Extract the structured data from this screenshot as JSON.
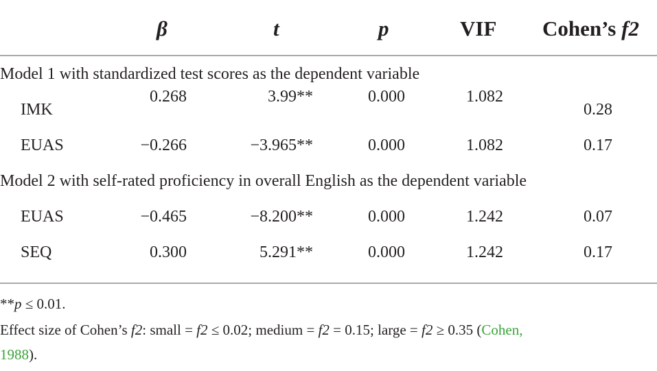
{
  "table": {
    "headers": {
      "beta": "β",
      "t": "t",
      "p": "p",
      "vif": "VIF",
      "cohen_prefix": "Cohen’s ",
      "cohen_f": "f2"
    },
    "model1": {
      "title": "Model 1 with standardized test scores as the dependent variable",
      "rows": [
        {
          "label": "IMK",
          "beta": "0.268",
          "t": "3.99**",
          "p": "0.000",
          "vif": "1.082",
          "f2": "0.28"
        },
        {
          "label": "EUAS",
          "beta": "−0.266",
          "t": "−3.965**",
          "p": "0.000",
          "vif": "1.082",
          "f2": "0.17"
        }
      ]
    },
    "model2": {
      "title": "Model 2 with self-rated proficiency in overall English as the dependent variable",
      "rows": [
        {
          "label": "EUAS",
          "beta": "−0.465",
          "t": "−8.200**",
          "p": "0.000",
          "vif": "1.242",
          "f2": "0.07"
        },
        {
          "label": "SEQ",
          "beta": "0.300",
          "t": "5.291**",
          "p": "0.000",
          "vif": "1.242",
          "f2": "0.17"
        }
      ]
    }
  },
  "footnotes": {
    "sig_stars": "**",
    "sig_p": "p",
    "sig_rest": " ≤ 0.01.",
    "effect_a": "Effect size of Cohen’s ",
    "effect_f1": "f2",
    "effect_b": ": small = ",
    "effect_f2": "f2",
    "effect_c": " ≤ 0.02; medium = ",
    "effect_f3": "f2",
    "effect_d": " = 0.15; large = ",
    "effect_f4": "f2",
    "effect_e": " ≥ 0.35 (",
    "cite_name": "Cohen,",
    "cite_year": "1988",
    "effect_end": ")."
  }
}
